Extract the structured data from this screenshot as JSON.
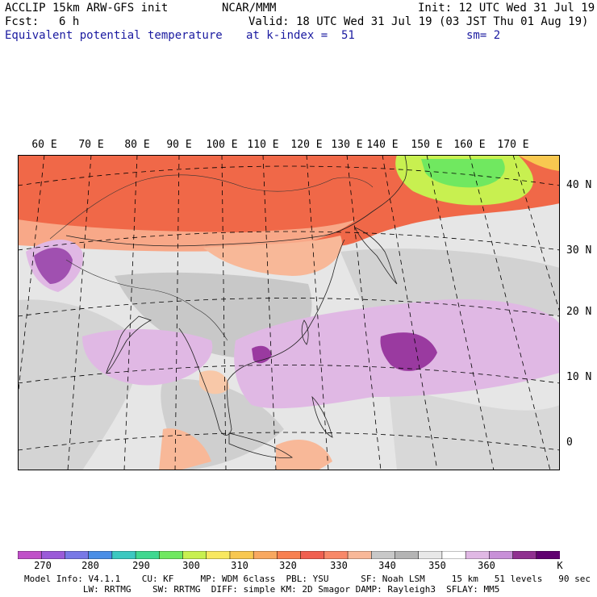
{
  "header": {
    "model_title": "ACCLIP 15km ARW-GFS init",
    "org": "NCAR/MMM",
    "init": "Init: 12 UTC Wed 31 Jul 19",
    "fcst_label": "Fcst:",
    "fcst_value": "6 h",
    "valid": "Valid: 18 UTC Wed 31 Jul 19 (03 JST Thu 01 Aug 19)",
    "field_name": "Equivalent potential temperature",
    "level": "at k-index =  51",
    "smooth": "sm= 2"
  },
  "longitude_labels": [
    "60 E",
    "70 E",
    "80 E",
    "90 E",
    "100 E",
    "110 E",
    "120 E",
    "130 E",
    "140 E",
    "150 E",
    "160 E",
    "170 E"
  ],
  "latitude_labels": [
    "40 N",
    "30 N",
    "20 N",
    "10 N",
    "0"
  ],
  "colorbar": {
    "unit": "K",
    "labels": [
      "270",
      "280",
      "290",
      "300",
      "310",
      "320",
      "330",
      "340",
      "350",
      "360"
    ],
    "colors": [
      "#c050c8",
      "#9a5ad8",
      "#7878e6",
      "#4a8ee6",
      "#3cc8c0",
      "#40d890",
      "#70e860",
      "#c8f050",
      "#f8e860",
      "#f8c850",
      "#f8a860",
      "#f88050",
      "#f06050",
      "#f88868",
      "#f8b898",
      "#c8c8c8",
      "#b4b4b4",
      "#e8e8e8",
      "#ffffff",
      "#e0b8e4",
      "#c890d8",
      "#903090",
      "#600070"
    ]
  },
  "footer": {
    "line1": "Model Info: V4.1.1    CU: KF     MP: WDM 6class  PBL: YSU      SF: Noah LSM     15 km   51 levels   90 sec",
    "line2": "           LW: RRTMG    SW: RRTMG  DIFF: simple KM: 2D Smagor DAMP: Rayleigh3  SFLAY: MM5"
  }
}
